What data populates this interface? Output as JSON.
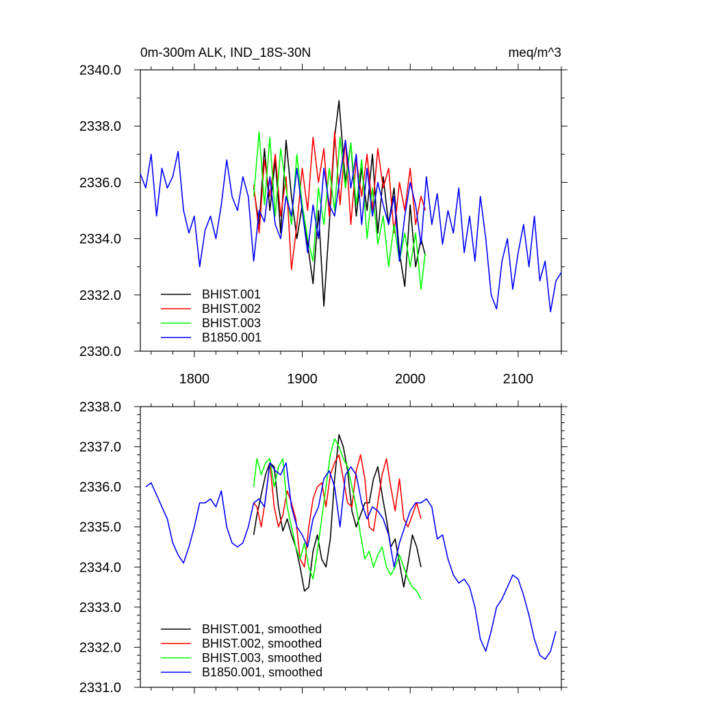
{
  "chart_data": [
    {
      "type": "line",
      "title_left": "0m-300m ALK, IND_18S-30N",
      "title_right": "meq/m^3",
      "xlabel": "",
      "ylabel": "",
      "xlim": [
        1750,
        2140
      ],
      "ylim": [
        2330.0,
        2340.0
      ],
      "x_ticks": [
        1800,
        1900,
        2000,
        2100
      ],
      "x_tick_labels": [
        "1800",
        "1900",
        "2000",
        "2100"
      ],
      "y_ticks": [
        2330.0,
        2332.0,
        2334.0,
        2336.0,
        2338.0,
        2340.0
      ],
      "y_tick_labels": [
        "2330.0",
        "2332.0",
        "2334.0",
        "2336.0",
        "2338.0",
        "2340.0"
      ],
      "legend_position": "bottom-left",
      "series": [
        {
          "name": "BHIST.001",
          "color": "#000000",
          "x": [
            1855,
            1860,
            1865,
            1870,
            1875,
            1880,
            1885,
            1890,
            1895,
            1900,
            1905,
            1910,
            1915,
            1920,
            1925,
            1930,
            1934,
            1940,
            1945,
            1950,
            1955,
            1960,
            1965,
            1970,
            1975,
            1980,
            1985,
            1990,
            1995,
            2000,
            2005,
            2010,
            2014
          ],
          "y": [
            2335.8,
            2334.5,
            2337.2,
            2335.0,
            2336.8,
            2334.2,
            2337.5,
            2335.5,
            2334.0,
            2335.2,
            2333.8,
            2332.4,
            2335.0,
            2331.6,
            2334.5,
            2337.6,
            2338.9,
            2336.0,
            2337.4,
            2334.8,
            2336.5,
            2335.0,
            2337.0,
            2334.2,
            2336.2,
            2334.5,
            2335.8,
            2333.5,
            2332.3,
            2335.2,
            2333.0,
            2334.0,
            2333.4
          ]
        },
        {
          "name": "BHIST.002",
          "color": "#ff0000",
          "x": [
            1855,
            1860,
            1865,
            1870,
            1875,
            1880,
            1885,
            1890,
            1895,
            1900,
            1905,
            1910,
            1915,
            1920,
            1925,
            1930,
            1935,
            1940,
            1945,
            1950,
            1955,
            1960,
            1965,
            1970,
            1975,
            1980,
            1985,
            1990,
            1995,
            2000,
            2005,
            2010,
            2014
          ],
          "y": [
            2335.9,
            2334.2,
            2336.8,
            2335.5,
            2337.0,
            2334.8,
            2336.2,
            2332.9,
            2334.5,
            2336.5,
            2335.0,
            2337.6,
            2336.0,
            2337.2,
            2334.8,
            2337.8,
            2335.2,
            2337.5,
            2334.5,
            2336.8,
            2335.5,
            2337.0,
            2335.0,
            2337.2,
            2335.8,
            2336.5,
            2334.2,
            2336.0,
            2335.0,
            2336.5,
            2334.5,
            2335.5,
            2335.0
          ]
        },
        {
          "name": "BHIST.003",
          "color": "#00ff00",
          "x": [
            1855,
            1860,
            1865,
            1870,
            1875,
            1880,
            1885,
            1890,
            1895,
            1900,
            1905,
            1910,
            1915,
            1920,
            1925,
            1930,
            1935,
            1940,
            1945,
            1950,
            1955,
            1960,
            1965,
            1970,
            1975,
            1980,
            1985,
            1990,
            1995,
            2000,
            2005,
            2010,
            2014
          ],
          "y": [
            2335.5,
            2337.8,
            2335.2,
            2337.6,
            2334.8,
            2337.2,
            2335.8,
            2334.5,
            2337.0,
            2335.2,
            2334.0,
            2333.2,
            2335.8,
            2334.5,
            2336.5,
            2335.0,
            2337.6,
            2335.8,
            2337.4,
            2335.2,
            2336.8,
            2334.0,
            2335.8,
            2333.8,
            2334.8,
            2333.0,
            2334.5,
            2333.2,
            2334.2,
            2333.0,
            2334.2,
            2332.2,
            2333.5
          ]
        },
        {
          "name": "B1850.001",
          "color": "#0000ff",
          "x": [
            1750,
            1755,
            1760,
            1765,
            1770,
            1775,
            1780,
            1785,
            1790,
            1795,
            1800,
            1805,
            1810,
            1815,
            1820,
            1825,
            1830,
            1835,
            1840,
            1845,
            1850,
            1855,
            1860,
            1865,
            1870,
            1875,
            1880,
            1885,
            1890,
            1895,
            1900,
            1905,
            1910,
            1915,
            1920,
            1925,
            1930,
            1935,
            1940,
            1945,
            1950,
            1955,
            1960,
            1965,
            1970,
            1975,
            1980,
            1985,
            1990,
            1995,
            2000,
            2005,
            2010,
            2015,
            2020,
            2025,
            2030,
            2035,
            2040,
            2045,
            2050,
            2055,
            2060,
            2065,
            2070,
            2075,
            2080,
            2085,
            2090,
            2095,
            2100,
            2105,
            2110,
            2115,
            2120,
            2125,
            2130,
            2135,
            2140
          ],
          "y": [
            2336.3,
            2335.8,
            2337.0,
            2334.8,
            2336.5,
            2335.8,
            2336.2,
            2337.1,
            2335.0,
            2334.2,
            2334.8,
            2333.0,
            2334.3,
            2334.8,
            2334.0,
            2335.2,
            2336.8,
            2335.5,
            2335.0,
            2336.2,
            2335.5,
            2333.2,
            2335.0,
            2334.6,
            2336.2,
            2334.5,
            2334.0,
            2335.5,
            2334.8,
            2336.5,
            2335.0,
            2333.5,
            2335.2,
            2334.0,
            2336.5,
            2335.2,
            2334.8,
            2336.2,
            2337.5,
            2335.8,
            2337.0,
            2334.5,
            2336.5,
            2334.8,
            2336.0,
            2335.2,
            2334.5,
            2335.5,
            2333.2,
            2334.8,
            2336.0,
            2335.2,
            2333.8,
            2336.2,
            2334.5,
            2335.6,
            2333.8,
            2335.0,
            2334.2,
            2335.8,
            2333.5,
            2334.8,
            2333.2,
            2335.5,
            2334.0,
            2332.0,
            2331.5,
            2333.2,
            2334.0,
            2332.2,
            2333.5,
            2334.5,
            2333.0,
            2334.8,
            2332.5,
            2333.2,
            2331.4,
            2332.5,
            2332.8
          ]
        }
      ]
    },
    {
      "type": "line",
      "title_left": "",
      "title_right": "",
      "xlabel": "",
      "ylabel": "",
      "xlim": [
        1750,
        2140
      ],
      "ylim": [
        2331.0,
        2338.0
      ],
      "x_ticks": [
        1800,
        1900,
        2000,
        2100
      ],
      "x_tick_labels": [
        "",
        "",
        "",
        ""
      ],
      "y_ticks": [
        2331.0,
        2332.0,
        2333.0,
        2334.0,
        2335.0,
        2336.0,
        2337.0,
        2338.0
      ],
      "y_tick_labels": [
        "2331.0",
        "2332.0",
        "2333.0",
        "2334.0",
        "2335.0",
        "2336.0",
        "2337.0",
        "2338.0"
      ],
      "legend_position": "bottom-left",
      "series": [
        {
          "name": "BHIST.001, smoothed",
          "color": "#000000",
          "x": [
            1855,
            1858,
            1862,
            1866,
            1870,
            1874,
            1878,
            1882,
            1886,
            1890,
            1894,
            1898,
            1902,
            1906,
            1910,
            1914,
            1918,
            1922,
            1926,
            1930,
            1934,
            1938,
            1942,
            1946,
            1950,
            1954,
            1958,
            1962,
            1966,
            1970,
            1974,
            1978,
            1982,
            1986,
            1990,
            1994,
            1998,
            2002,
            2006,
            2010
          ],
          "y": [
            2334.8,
            2335.3,
            2335.8,
            2336.3,
            2336.6,
            2336.5,
            2335.5,
            2334.9,
            2335.2,
            2334.8,
            2334.5,
            2334.0,
            2333.4,
            2333.5,
            2334.4,
            2334.8,
            2334.2,
            2334.0,
            2334.7,
            2336.2,
            2337.3,
            2337.0,
            2336.4,
            2335.4,
            2335.0,
            2335.3,
            2335.6,
            2335.6,
            2336.2,
            2336.5,
            2335.8,
            2335.2,
            2334.5,
            2334.7,
            2334.1,
            2333.5,
            2334.1,
            2334.8,
            2334.5,
            2334.0
          ]
        },
        {
          "name": "BHIST.002, smoothed",
          "color": "#ff0000",
          "x": [
            1855,
            1858,
            1862,
            1866,
            1870,
            1874,
            1878,
            1882,
            1886,
            1890,
            1894,
            1898,
            1902,
            1906,
            1910,
            1914,
            1918,
            1922,
            1926,
            1930,
            1934,
            1938,
            1942,
            1946,
            1950,
            1954,
            1958,
            1962,
            1966,
            1970,
            1974,
            1978,
            1982,
            1986,
            1990,
            1994,
            1998,
            2002,
            2006,
            2010
          ],
          "y": [
            2335.6,
            2335.5,
            2335.0,
            2335.7,
            2336.6,
            2335.5,
            2335.0,
            2335.3,
            2335.9,
            2335.6,
            2335.2,
            2334.2,
            2334.0,
            2335.0,
            2335.7,
            2336.0,
            2336.1,
            2335.5,
            2336.3,
            2336.6,
            2336.8,
            2336.2,
            2335.6,
            2335.5,
            2336.4,
            2336.8,
            2336.2,
            2335.0,
            2334.9,
            2335.6,
            2336.3,
            2336.7,
            2336.0,
            2335.4,
            2336.2,
            2335.2,
            2335.0,
            2335.3,
            2335.6,
            2335.2
          ]
        },
        {
          "name": "BHIST.003, smoothed",
          "color": "#00ff00",
          "x": [
            1855,
            1858,
            1862,
            1866,
            1870,
            1874,
            1878,
            1882,
            1886,
            1890,
            1894,
            1898,
            1902,
            1906,
            1910,
            1914,
            1918,
            1922,
            1926,
            1930,
            1934,
            1938,
            1942,
            1946,
            1950,
            1954,
            1958,
            1962,
            1966,
            1970,
            1974,
            1978,
            1982,
            1986,
            1990,
            1994,
            1998,
            2002,
            2006,
            2010
          ],
          "y": [
            2336.0,
            2336.7,
            2336.3,
            2336.6,
            2336.7,
            2336.0,
            2336.5,
            2336.7,
            2335.5,
            2335.0,
            2334.5,
            2334.2,
            2334.6,
            2334.0,
            2333.7,
            2334.4,
            2335.2,
            2336.0,
            2336.8,
            2337.2,
            2337.0,
            2336.7,
            2336.5,
            2336.0,
            2335.5,
            2334.8,
            2334.2,
            2334.4,
            2334.0,
            2334.3,
            2334.5,
            2334.0,
            2333.8,
            2334.0,
            2334.3,
            2334.0,
            2333.7,
            2333.5,
            2333.4,
            2333.2
          ]
        },
        {
          "name": "B1850.001, smoothed",
          "color": "#0000ff",
          "x": [
            1755,
            1760,
            1765,
            1770,
            1775,
            1780,
            1785,
            1790,
            1795,
            1800,
            1805,
            1810,
            1815,
            1820,
            1825,
            1830,
            1835,
            1840,
            1845,
            1850,
            1855,
            1860,
            1865,
            1870,
            1875,
            1880,
            1885,
            1890,
            1895,
            1900,
            1905,
            1910,
            1915,
            1920,
            1925,
            1930,
            1935,
            1940,
            1945,
            1950,
            1955,
            1960,
            1965,
            1970,
            1975,
            1980,
            1985,
            1990,
            1995,
            2000,
            2005,
            2010,
            2015,
            2020,
            2025,
            2030,
            2035,
            2040,
            2045,
            2050,
            2055,
            2060,
            2065,
            2070,
            2075,
            2080,
            2085,
            2090,
            2095,
            2100,
            2105,
            2110,
            2115,
            2120,
            2125,
            2130,
            2135
          ],
          "y": [
            2336.0,
            2336.1,
            2335.8,
            2335.5,
            2335.2,
            2334.6,
            2334.3,
            2334.1,
            2334.5,
            2335.0,
            2335.6,
            2335.6,
            2335.7,
            2335.5,
            2335.9,
            2335.0,
            2334.6,
            2334.5,
            2334.6,
            2335.0,
            2335.6,
            2335.7,
            2335.5,
            2336.6,
            2336.4,
            2336.3,
            2336.6,
            2335.5,
            2335.0,
            2334.8,
            2334.5,
            2335.2,
            2335.5,
            2336.2,
            2336.4,
            2336.0,
            2335.0,
            2336.3,
            2336.5,
            2336.3,
            2335.6,
            2335.2,
            2335.5,
            2335.4,
            2335.2,
            2334.8,
            2334.0,
            2334.6,
            2335.0,
            2335.4,
            2335.6,
            2335.6,
            2335.7,
            2335.5,
            2334.7,
            2334.8,
            2334.2,
            2333.8,
            2333.6,
            2333.7,
            2333.5,
            2333.0,
            2332.2,
            2331.9,
            2332.4,
            2333.0,
            2333.2,
            2333.5,
            2333.8,
            2333.7,
            2333.3,
            2332.8,
            2332.2,
            2331.8,
            2331.7,
            2331.9,
            2332.4
          ]
        }
      ]
    }
  ]
}
